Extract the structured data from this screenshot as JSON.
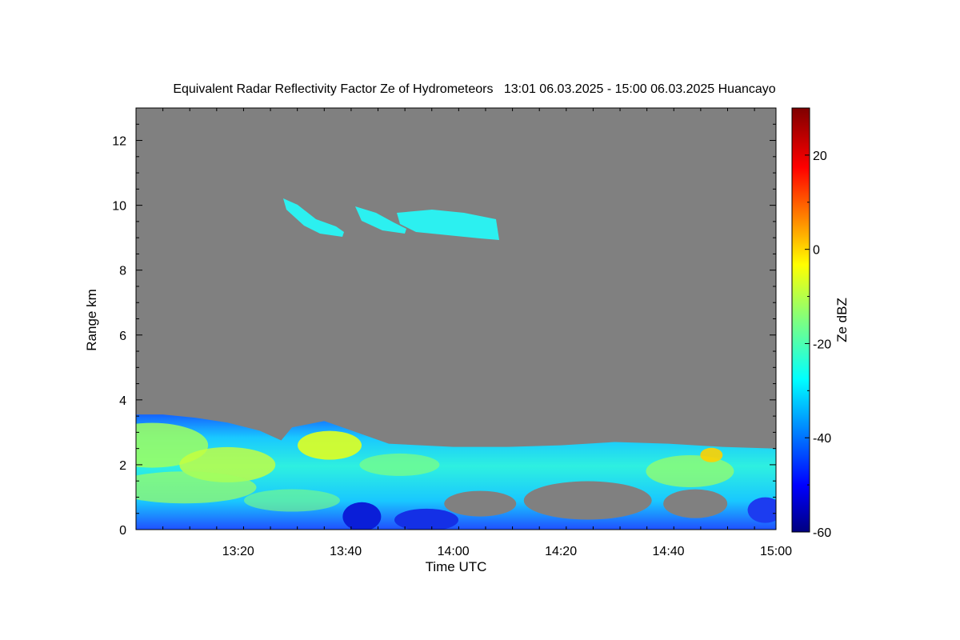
{
  "chart_data": {
    "type": "heatmap",
    "title": "Equivalent Radar Reflectivity Factor Ze of Hydrometeors   13:01 06.03.2025 - 15:00 06.03.2025 Huancayo",
    "xlabel": "Time UTC",
    "ylabel": "Range km",
    "colorbar_label": "Ze dBZ",
    "xlim": [
      "13:01",
      "15:00"
    ],
    "ylim": [
      0,
      13
    ],
    "x_ticks": [
      "13:20",
      "13:40",
      "14:00",
      "14:20",
      "14:40",
      "15:00"
    ],
    "y_ticks": [
      0,
      2,
      4,
      6,
      8,
      10,
      12
    ],
    "colorbar_range": [
      -60,
      30
    ],
    "colorbar_ticks": [
      -60,
      -40,
      -20,
      0,
      20
    ],
    "colormap": "jet",
    "background_color": "#808080",
    "regions": [
      {
        "name": "low-level cloud and precipitation layer",
        "x_start": "13:01",
        "x_end": "15:00",
        "range_km": [
          0,
          3.6
        ],
        "top_profile": [
          [
            "13:01",
            3.55
          ],
          [
            "13:06",
            3.55
          ],
          [
            "13:12",
            3.45
          ],
          [
            "13:18",
            3.3
          ],
          [
            "13:24",
            3.05
          ],
          [
            "13:28",
            2.75
          ],
          [
            "13:30",
            3.15
          ],
          [
            "13:36",
            3.35
          ],
          [
            "13:42",
            3.0
          ],
          [
            "13:48",
            2.65
          ],
          [
            "14:00",
            2.55
          ],
          [
            "14:10",
            2.55
          ],
          [
            "14:20",
            2.6
          ],
          [
            "14:30",
            2.7
          ],
          [
            "14:40",
            2.65
          ],
          [
            "14:50",
            2.55
          ],
          [
            "15:00",
            2.5
          ]
        ],
        "ze_dbz_range": [
          -60,
          -5
        ]
      },
      {
        "name": "upper-level ice cloud",
        "x_start": "13:29",
        "x_end": "14:09",
        "range_km": [
          8.9,
          10.2
        ],
        "ze_dbz_range": [
          -30,
          -20
        ]
      }
    ]
  }
}
